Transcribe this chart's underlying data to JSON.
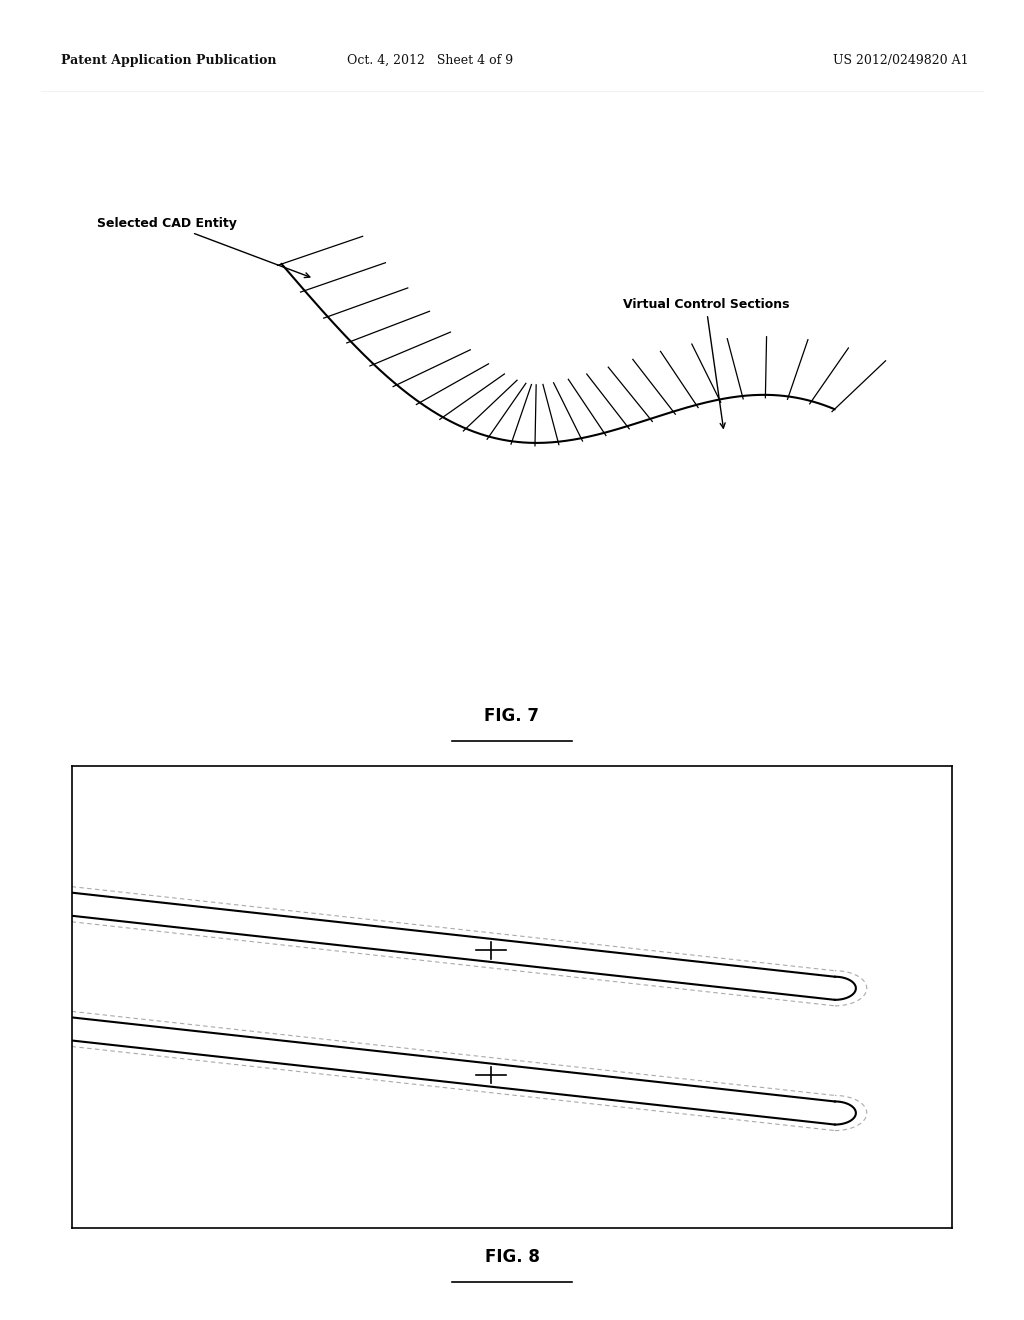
{
  "header_left": "Patent Application Publication",
  "header_center": "Oct. 4, 2012   Sheet 4 of 9",
  "header_right": "US 2012/0249820 A1",
  "fig7_label": "FIG. 7",
  "fig8_label": "FIG. 8",
  "label_cad": "Selected CAD Entity",
  "label_vcs": "Virtual Control Sections",
  "bg_color": "#ffffff",
  "line_color": "#000000",
  "gray_color": "#aaaaaa"
}
